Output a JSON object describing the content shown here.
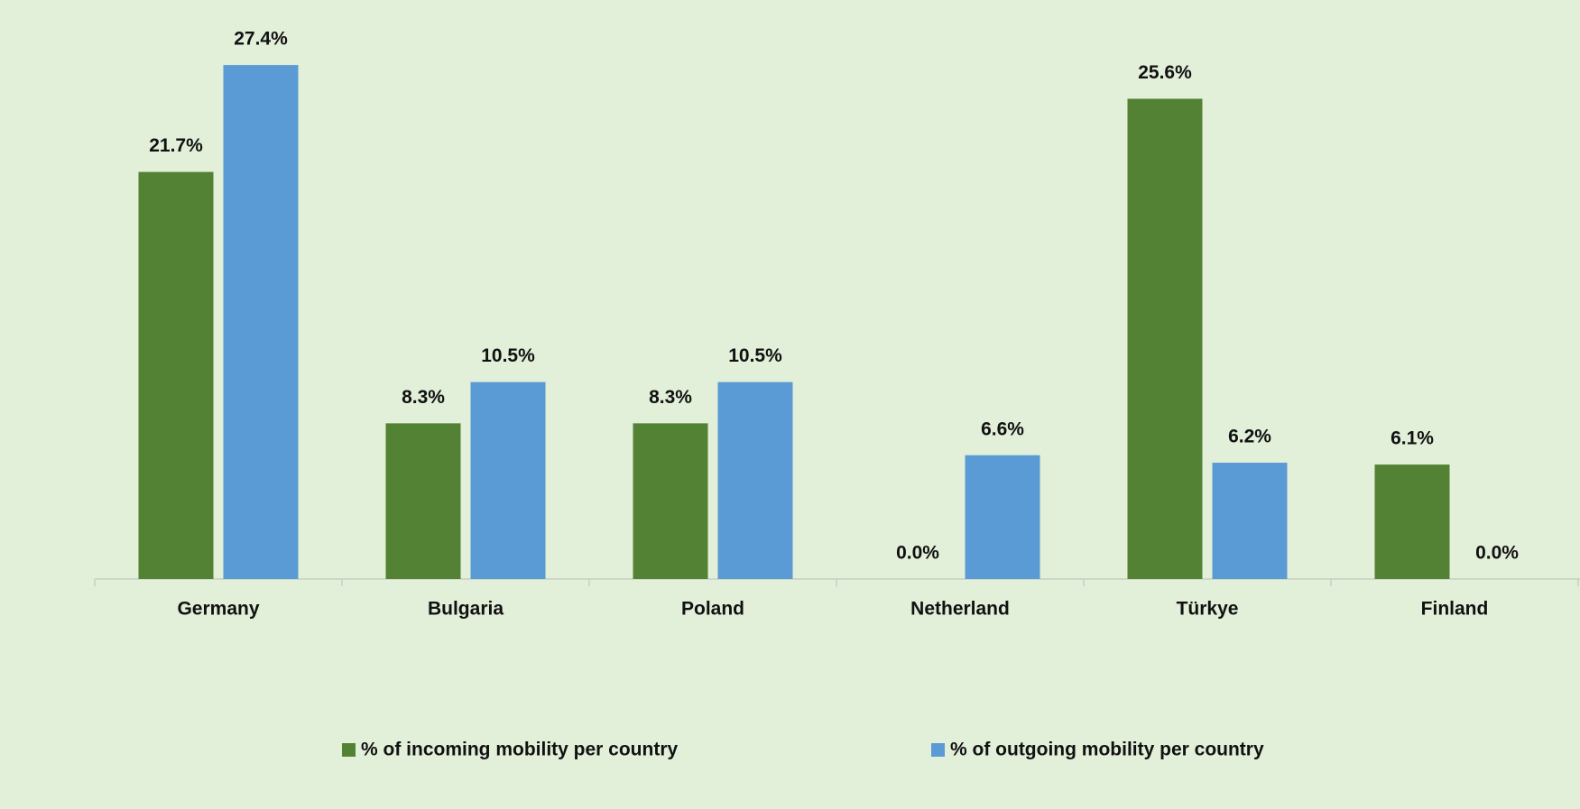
{
  "chart_data": {
    "type": "bar",
    "categories": [
      "Germany",
      "Bulgaria",
      "Poland",
      "Netherland",
      "Türkye",
      "Finland"
    ],
    "series": [
      {
        "name": "% of incoming mobility per country",
        "color": "#548235",
        "values": [
          21.7,
          8.3,
          8.3,
          0.0,
          25.6,
          6.1
        ],
        "value_labels": [
          "21.7%",
          "8.3%",
          "8.3%",
          "0.0%",
          "25.6%",
          "6.1%"
        ]
      },
      {
        "name": "% of outgoing mobility per country",
        "color": "#5b9bd5",
        "values": [
          27.4,
          10.5,
          10.5,
          6.6,
          6.2,
          0.0
        ],
        "value_labels": [
          "27.4%",
          "10.5%",
          "10.5%",
          "6.6%",
          "6.2%",
          "0.0%"
        ]
      }
    ],
    "legend": "bottom"
  }
}
